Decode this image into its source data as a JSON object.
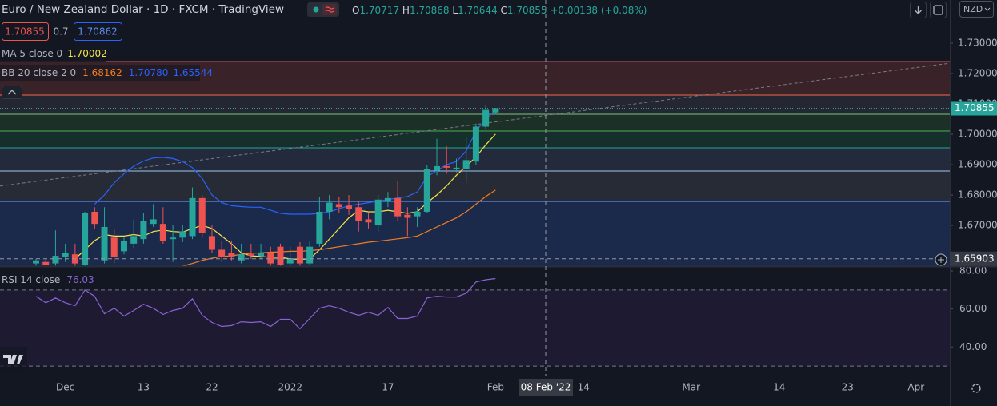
{
  "chart_data": {
    "type": "candlestick",
    "title": "Euro / New Zealand Dollar · 1D · FXCM · TradingView",
    "ohlc_prefixes": [
      "O",
      "H",
      "L",
      "C"
    ],
    "change_label": "+0.00138 (+0.08%)",
    "currency": "NZD",
    "trade": {
      "sell": "1.70855",
      "spread": "0.7",
      "buy": "1.70862"
    },
    "categories": [
      null,
      null,
      null,
      "Dec",
      null,
      null,
      null,
      null,
      null,
      null,
      null,
      "13",
      null,
      null,
      null,
      null,
      null,
      null,
      "22",
      null,
      null,
      null,
      null,
      null,
      null,
      null,
      "2022",
      null,
      null,
      null,
      null,
      null,
      null,
      null,
      null,
      null,
      "17",
      null,
      null,
      null,
      null,
      null,
      null,
      null,
      null,
      null,
      null,
      "Feb",
      null,
      null,
      null,
      null,
      null,
      null,
      null,
      null,
      "14",
      null,
      null,
      null,
      null,
      null,
      null,
      null,
      null,
      null,
      null,
      "Mar",
      null,
      null,
      null,
      null,
      null,
      null,
      null,
      null,
      "14",
      null,
      null,
      null,
      null,
      null,
      null,
      "23",
      null,
      null,
      null,
      null,
      null,
      null,
      "Apr",
      null,
      null,
      null
    ],
    "open": [
      1.6575,
      1.658,
      1.6575,
      1.6595,
      1.6605,
      1.657,
      1.6745,
      1.6585,
      1.666,
      1.6615,
      1.664,
      1.6655,
      1.6705,
      1.6705,
      1.6655,
      1.666,
      1.6665,
      1.679,
      1.6665,
      1.662,
      1.661,
      1.6585,
      1.6605,
      1.66,
      1.661,
      1.663,
      1.6575,
      1.663,
      1.6575,
      1.664,
      1.6745,
      1.677,
      1.6765,
      1.676,
      1.672,
      1.67,
      1.678,
      1.679,
      1.6735,
      1.673,
      1.6745,
      1.688,
      1.6895,
      1.6885,
      1.6885,
      1.691,
      1.7025,
      1.70717,
      null,
      null,
      null,
      null,
      null,
      null,
      null,
      null,
      null,
      null,
      null,
      null,
      null,
      null,
      null,
      null,
      null,
      null,
      null,
      null,
      null,
      null,
      null,
      null,
      null,
      null,
      null,
      null,
      null,
      null,
      null,
      null,
      null,
      null,
      null,
      null,
      null,
      null,
      null,
      null,
      null,
      null,
      null,
      null,
      null,
      null
    ],
    "high": [
      1.659,
      1.659,
      1.6684,
      1.664,
      1.664,
      1.6745,
      1.676,
      1.676,
      1.669,
      1.666,
      1.672,
      1.674,
      1.677,
      1.676,
      1.67,
      1.67,
      1.6825,
      1.68,
      1.67,
      1.665,
      1.665,
      1.664,
      1.664,
      1.664,
      1.663,
      1.664,
      1.663,
      1.6645,
      1.665,
      1.6795,
      1.68,
      1.6795,
      1.68,
      1.678,
      1.674,
      1.68,
      1.681,
      1.6845,
      1.676,
      1.676,
      1.69,
      1.6985,
      1.696,
      1.692,
      1.699,
      1.7035,
      1.7095,
      1.70868,
      null,
      null,
      null,
      null,
      null,
      null,
      null,
      null,
      null,
      null,
      null,
      null,
      null,
      null,
      null,
      null,
      null,
      null,
      null,
      null,
      null,
      null,
      null,
      null,
      null,
      null,
      null,
      null,
      null,
      null,
      null,
      null,
      null,
      null,
      null,
      null,
      null,
      null,
      null,
      null,
      null,
      null,
      null,
      null,
      null,
      null
    ],
    "low": [
      1.6565,
      1.656,
      1.6565,
      1.658,
      1.656,
      1.656,
      1.669,
      1.6575,
      1.6575,
      1.6605,
      1.6625,
      1.664,
      1.6695,
      1.664,
      1.658,
      1.6645,
      1.6655,
      1.666,
      1.661,
      1.658,
      1.6585,
      1.6575,
      1.659,
      1.659,
      1.6565,
      1.656,
      1.6565,
      1.6565,
      1.657,
      1.663,
      1.672,
      1.674,
      1.6735,
      1.668,
      1.669,
      1.668,
      1.676,
      1.6715,
      1.6665,
      1.6695,
      1.674,
      1.6865,
      1.687,
      1.6875,
      1.684,
      1.69,
      1.7015,
      1.70644,
      null,
      null,
      null,
      null,
      null,
      null,
      null,
      null,
      null,
      null,
      null,
      null,
      null,
      null,
      null,
      null,
      null,
      null,
      null,
      null,
      null,
      null,
      null,
      null,
      null,
      null,
      null,
      null,
      null,
      null,
      null,
      null,
      null,
      null,
      null,
      null,
      null,
      null,
      null,
      null,
      null,
      null,
      null,
      null,
      null,
      null
    ],
    "close": [
      1.6585,
      1.657,
      1.66,
      1.661,
      1.6575,
      1.674,
      1.6705,
      1.6695,
      1.6595,
      1.665,
      1.6665,
      1.6715,
      1.672,
      1.665,
      1.666,
      1.668,
      1.679,
      1.6675,
      1.662,
      1.6595,
      1.6595,
      1.6605,
      1.66,
      1.661,
      1.6575,
      1.657,
      1.659,
      1.6575,
      1.663,
      1.6745,
      1.6775,
      1.676,
      1.6755,
      1.6715,
      1.671,
      1.6785,
      1.679,
      1.673,
      1.6725,
      1.6745,
      1.6885,
      1.6895,
      1.689,
      1.689,
      1.6915,
      1.7025,
      1.708,
      1.70855,
      null,
      null,
      null,
      null,
      null,
      null,
      null,
      null,
      null,
      null,
      null,
      null,
      null,
      null,
      null,
      null,
      null,
      null,
      null,
      null,
      null,
      null,
      null,
      null,
      null,
      null,
      null,
      null,
      null,
      null,
      null,
      null,
      null,
      null,
      null,
      null,
      null,
      null,
      null,
      null,
      null,
      null,
      null,
      null,
      null,
      null
    ],
    "up_color": "#26a69a",
    "down_color": "#ef5350",
    "series": [
      {
        "name": "MA 5 close 0",
        "value_label": "1.70002",
        "color": "#f7e34a",
        "values": [
          null,
          null,
          null,
          null,
          1.659,
          1.662,
          1.665,
          1.667,
          1.6665,
          1.6665,
          1.667,
          1.6665,
          1.668,
          1.6685,
          1.668,
          1.6678,
          1.669,
          1.67,
          1.669,
          1.6665,
          1.664,
          1.661,
          1.66,
          1.6598,
          1.6595,
          1.6595,
          1.659,
          1.6588,
          1.659,
          1.662,
          1.6655,
          1.669,
          1.6725,
          1.675,
          1.6745,
          1.6745,
          1.675,
          1.6745,
          1.674,
          1.6745,
          1.6775,
          1.68,
          1.683,
          1.6865,
          1.6895,
          1.6925,
          1.6965,
          1.70002,
          null,
          null,
          null,
          null,
          null,
          null,
          null,
          null,
          null,
          null,
          null,
          null,
          null,
          null,
          null,
          null,
          null,
          null,
          null,
          null,
          null,
          null,
          null,
          null,
          null,
          null,
          null,
          null,
          null,
          null,
          null,
          null,
          null,
          null,
          null,
          null,
          null,
          null,
          null,
          null,
          null,
          null,
          null,
          null,
          null,
          null
        ]
      },
      {
        "name": "BB 20 close 2 0",
        "value_label": "1.68162",
        "color": "#f57c1f",
        "values": [
          null,
          null,
          null,
          null,
          null,
          null,
          null,
          null,
          null,
          null,
          null,
          null,
          null,
          null,
          null,
          1.6566,
          1.6575,
          1.6585,
          1.6592,
          1.6598,
          1.66,
          1.6605,
          1.6608,
          1.661,
          1.6612,
          1.6613,
          1.6615,
          1.6615,
          1.6617,
          1.662,
          1.6625,
          1.663,
          1.6635,
          1.664,
          1.6645,
          1.6648,
          1.6652,
          1.6656,
          1.666,
          1.6665,
          1.668,
          1.6695,
          1.671,
          1.6725,
          1.6745,
          1.677,
          1.6795,
          1.68162,
          null,
          null,
          null,
          null,
          null,
          null,
          null,
          null,
          null,
          null,
          null,
          null,
          null,
          null,
          null,
          null,
          null,
          null,
          null,
          null,
          null,
          null,
          null,
          null,
          null,
          null,
          null,
          null,
          null,
          null,
          null,
          null,
          null,
          null,
          null,
          null,
          null,
          null,
          null,
          null,
          null,
          null,
          null,
          null,
          null,
          null
        ]
      },
      {
        "value_label": "1.70780",
        "color": "#2962ff",
        "values": [
          null,
          null,
          null,
          null,
          null,
          null,
          1.677,
          1.68,
          1.684,
          1.687,
          1.6895,
          1.6912,
          1.6922,
          1.6924,
          1.692,
          1.691,
          1.689,
          1.6855,
          1.68,
          1.6775,
          1.6765,
          1.6762,
          1.676,
          1.676,
          1.675,
          1.674,
          1.6737,
          1.6737,
          1.6737,
          1.674,
          1.6745,
          1.6755,
          1.6765,
          1.677,
          1.6775,
          1.678,
          1.6785,
          1.679,
          1.6795,
          1.681,
          1.686,
          1.688,
          1.69,
          1.691,
          1.6945,
          1.701,
          1.705,
          1.7078,
          null,
          null,
          null,
          null,
          null,
          null,
          null,
          null,
          null,
          null,
          null,
          null,
          null,
          null,
          null,
          null,
          null,
          null,
          null,
          null,
          null,
          null,
          null,
          null,
          null,
          null,
          null,
          null,
          null,
          null,
          null,
          null,
          null,
          null,
          null,
          null,
          null,
          null,
          null,
          null,
          null,
          null,
          null,
          null,
          null,
          null
        ]
      }
    ],
    "bb_lower_label": "1.65544",
    "bb_lower_color": "#2962ff",
    "ylim": [
      1.6566,
      1.7442
    ],
    "yticks": [
      {
        "value": 1.73,
        "label": "1.73000"
      },
      {
        "value": 1.72,
        "label": "1.72000"
      },
      {
        "value": 1.71,
        "label": "1.71000"
      },
      {
        "value": 1.7,
        "label": "1.70000"
      },
      {
        "value": 1.69,
        "label": "1.69000"
      },
      {
        "value": 1.68,
        "label": "1.68000"
      },
      {
        "value": 1.67,
        "label": "1.67000"
      }
    ],
    "levels": [
      1.72395,
      1.71289,
      1.70658,
      1.70105,
      1.69553,
      1.68789,
      1.67789
    ],
    "level_colors": [
      "#e0566a",
      "#f06a4a",
      "#7cc47f",
      "#4caf50",
      "#26a69a",
      "#9ec5f0",
      "#5b8def"
    ],
    "zone_colors": [
      "#3a2229",
      "#242732",
      "#1d3028",
      "#162e2c",
      "#222a3b",
      "#272b36",
      "#1b2a4b"
    ],
    "trendline": [
      1.6845,
      1.7232
    ],
    "crosshair": {
      "price": 1.65903,
      "x_label": "08 Feb '22"
    },
    "rsi": {
      "name": "RSI 14 close",
      "color": "#8a63d2",
      "band_color": "#1e1a32",
      "values": [
        66.7,
        63.3,
        65.8,
        63.3,
        61.7,
        70.0,
        66.7,
        57.5,
        60.4,
        56.3,
        59.2,
        62.5,
        60.4,
        57.1,
        59.2,
        60.4,
        65.4,
        56.7,
        52.9,
        50.8,
        51.3,
        53.3,
        52.9,
        53.3,
        50.8,
        54.6,
        54.6,
        49.6,
        55.0,
        60.4,
        61.7,
        60.4,
        58.3,
        56.7,
        58.3,
        56.7,
        60.8,
        55.0,
        55.0,
        56.3,
        65.8,
        66.7,
        66.3,
        66.3,
        68.3,
        74.2,
        75.4,
        76.03,
        null,
        null,
        null,
        null,
        null,
        null,
        null,
        null,
        null,
        null,
        null,
        null,
        null,
        null,
        null,
        null,
        null,
        null,
        null,
        null,
        null,
        null,
        null,
        null,
        null,
        null,
        null,
        null,
        null,
        null,
        null,
        null,
        null,
        null,
        null,
        null,
        null,
        null,
        null,
        null,
        null,
        null,
        null,
        null,
        null,
        null
      ],
      "ylim": [
        25,
        82.1
      ],
      "yticks": [
        {
          "value": 80,
          "label": "80.00"
        },
        {
          "value": 60,
          "label": "60.00"
        },
        {
          "value": 40,
          "label": "40.00"
        }
      ],
      "levels": [
        70,
        50,
        30
      ]
    }
  }
}
